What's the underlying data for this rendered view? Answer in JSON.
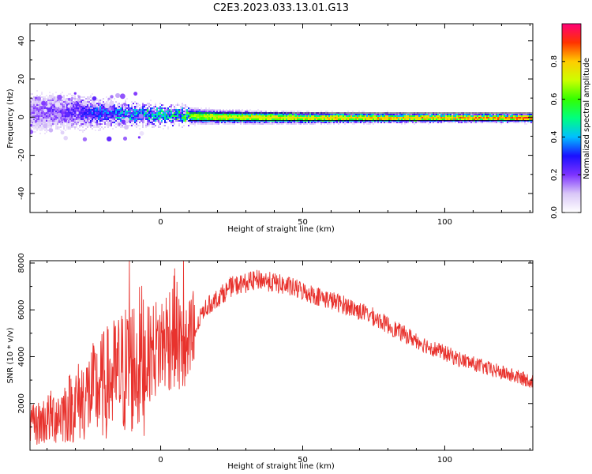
{
  "title": "C2E3.2023.033.13.01.G13",
  "chart_data": [
    {
      "type": "heatmap",
      "xlabel": "Height of straight line (km)",
      "ylabel": "Frequency (Hz)",
      "xlim": [
        -46,
        131
      ],
      "ylim": [
        -50,
        49
      ],
      "xticks": [
        0,
        50,
        100
      ],
      "yticks": [
        -40,
        -20,
        0,
        20,
        40
      ],
      "grid": false,
      "colorbar": {
        "label": "Normalized spectral amplitude",
        "range": [
          0,
          1
        ],
        "ticks": [
          0.0,
          0.2,
          0.4,
          0.6,
          0.8
        ],
        "colormap": [
          "#ffffff",
          "#d9c7f7",
          "#7d32ff",
          "#1a10ff",
          "#00bfff",
          "#00ff7f",
          "#33ff00",
          "#ccff00",
          "#ffcc00",
          "#ff3300",
          "#ff0077"
        ]
      },
      "band": [
        {
          "x": -45,
          "f_center": 3,
          "width": 10,
          "peak": 0.2
        },
        {
          "x": -30,
          "f_center": 3,
          "width": 8,
          "peak": 0.3
        },
        {
          "x": -15,
          "f_center": 2,
          "width": 5,
          "peak": 0.5
        },
        {
          "x": 0,
          "f_center": 1.5,
          "width": 4,
          "peak": 0.6
        },
        {
          "x": 20,
          "f_center": 0.5,
          "width": 3,
          "peak": 0.8
        },
        {
          "x": 50,
          "f_center": 0,
          "width": 2.5,
          "peak": 0.85
        },
        {
          "x": 100,
          "f_center": 0,
          "width": 2,
          "peak": 0.9
        },
        {
          "x": 130,
          "f_center": 0,
          "width": 2,
          "peak": 0.95
        }
      ]
    },
    {
      "type": "line",
      "xlabel": "Height of straight line (km)",
      "ylabel": "SNR (10 * v/v)",
      "xlim": [
        -46,
        131
      ],
      "ylim": [
        0,
        8100
      ],
      "xticks": [
        0,
        50,
        100
      ],
      "yticks": [
        2000,
        4000,
        6000,
        8000
      ],
      "grid": false,
      "color": "#e8322d",
      "envelope": [
        {
          "x": -46,
          "y": 1000
        },
        {
          "x": -35,
          "y": 1600
        },
        {
          "x": -25,
          "y": 2400
        },
        {
          "x": -15,
          "y": 3200
        },
        {
          "x": -9,
          "y": 3700
        },
        {
          "x": 0,
          "y": 4500
        },
        {
          "x": 5,
          "y": 5200
        },
        {
          "x": 8,
          "y": 4000
        },
        {
          "x": 10,
          "y": 4300
        },
        {
          "x": 15,
          "y": 6000
        },
        {
          "x": 25,
          "y": 7000
        },
        {
          "x": 35,
          "y": 7300
        },
        {
          "x": 45,
          "y": 7000
        },
        {
          "x": 55,
          "y": 6600
        },
        {
          "x": 65,
          "y": 6200
        },
        {
          "x": 75,
          "y": 5700
        },
        {
          "x": 85,
          "y": 5000
        },
        {
          "x": 95,
          "y": 4400
        },
        {
          "x": 105,
          "y": 3900
        },
        {
          "x": 115,
          "y": 3500
        },
        {
          "x": 125,
          "y": 3150
        },
        {
          "x": 131,
          "y": 2950
        }
      ],
      "spikes": [
        {
          "x": -11,
          "y": 8100
        },
        {
          "x": 8,
          "y": 8100
        }
      ]
    }
  ]
}
